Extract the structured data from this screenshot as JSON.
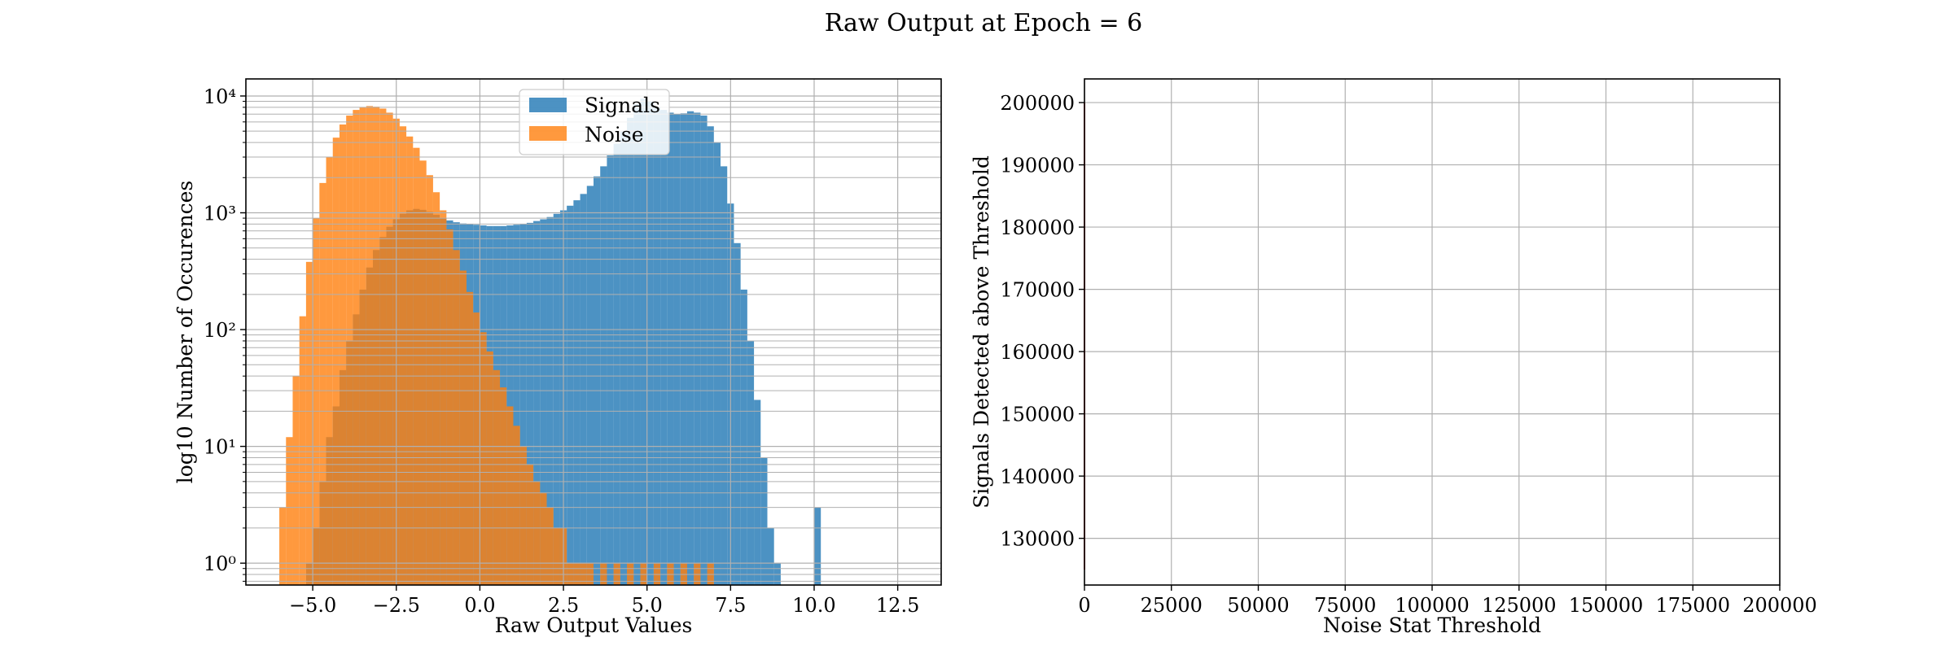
{
  "suptitle": "Raw Output at Epoch = 6",
  "colors": {
    "signals": "#1f77b4",
    "noise": "#ff7f0e",
    "threshold_line": "#d62728",
    "grid": "#b0b0b0"
  },
  "chart_data": [
    {
      "type": "bar",
      "subtype": "histogram",
      "xlabel": "Raw Output Values",
      "ylabel": "log10 Number of Occurences",
      "yscale": "log",
      "xlim": [
        -7.0,
        13.8
      ],
      "ylim": [
        0.65,
        14000
      ],
      "xticks": [
        -5.0,
        -2.5,
        0.0,
        2.5,
        5.0,
        7.5,
        10.0,
        12.5
      ],
      "xtick_labels": [
        "−5.0",
        "−2.5",
        "0.0",
        "2.5",
        "5.0",
        "7.5",
        "10.0",
        "12.5"
      ],
      "yticks": [
        1,
        10,
        100,
        1000,
        10000
      ],
      "ytick_labels": [
        "10⁰",
        "10¹",
        "10²",
        "10³",
        "10⁴"
      ],
      "grid": true,
      "legend": {
        "placement": "top-center",
        "entries": [
          "Signals",
          "Noise"
        ]
      },
      "alpha": 0.8,
      "series": [
        {
          "name": "Signals",
          "bin_start": -5.2,
          "bin_width": 0.2,
          "values": [
            1,
            2,
            5,
            12,
            22,
            45,
            80,
            135,
            220,
            340,
            480,
            620,
            760,
            880,
            980,
            1050,
            1080,
            1060,
            1020,
            960,
            900,
            860,
            830,
            810,
            800,
            790,
            780,
            770,
            770,
            770,
            780,
            790,
            800,
            820,
            850,
            880,
            920,
            980,
            1050,
            1150,
            1280,
            1450,
            1700,
            2050,
            2500,
            3100,
            3900,
            5000,
            6500,
            8500,
            9500,
            9000,
            8000,
            7600,
            7200,
            7000,
            7100,
            7400,
            7200,
            6800,
            5500,
            4000,
            2500,
            1200,
            550,
            220,
            80,
            25,
            8,
            2,
            1,
            0,
            0,
            0,
            0,
            0,
            3
          ]
        },
        {
          "name": "Noise",
          "bin_start": -6.0,
          "bin_width": 0.2,
          "values": [
            3,
            12,
            40,
            130,
            380,
            900,
            1800,
            3000,
            4400,
            5700,
            6800,
            7600,
            8000,
            8200,
            8100,
            7800,
            7200,
            6400,
            5500,
            4500,
            3600,
            2800,
            2100,
            1500,
            1050,
            720,
            480,
            320,
            210,
            140,
            95,
            65,
            45,
            32,
            22,
            15,
            10,
            7,
            5,
            4,
            3,
            2,
            2,
            1,
            1,
            1,
            1,
            0,
            1,
            0,
            1,
            0,
            1,
            0,
            1,
            0,
            1,
            0,
            1,
            0,
            1,
            0,
            1,
            0,
            1
          ]
        }
      ]
    },
    {
      "type": "line",
      "xlabel": "Noise Stat Threshold",
      "ylabel": "Signals Detected above Threshold",
      "xlim": [
        0,
        200000
      ],
      "ylim": [
        122500,
        203800
      ],
      "xticks": [
        0,
        25000,
        50000,
        75000,
        100000,
        125000,
        150000,
        175000,
        200000
      ],
      "xtick_labels": [
        "0",
        "25000",
        "50000",
        "75000",
        "100000",
        "125000",
        "150000",
        "175000",
        "200000"
      ],
      "yticks": [
        130000,
        140000,
        150000,
        160000,
        170000,
        180000,
        190000,
        200000
      ],
      "ytick_labels": [
        "130000",
        "140000",
        "150000",
        "160000",
        "170000",
        "180000",
        "190000",
        "200000"
      ],
      "grid": true,
      "series": [
        {
          "x": [
            0,
            0
          ],
          "y": [
            125000,
            200000
          ]
        }
      ]
    }
  ]
}
